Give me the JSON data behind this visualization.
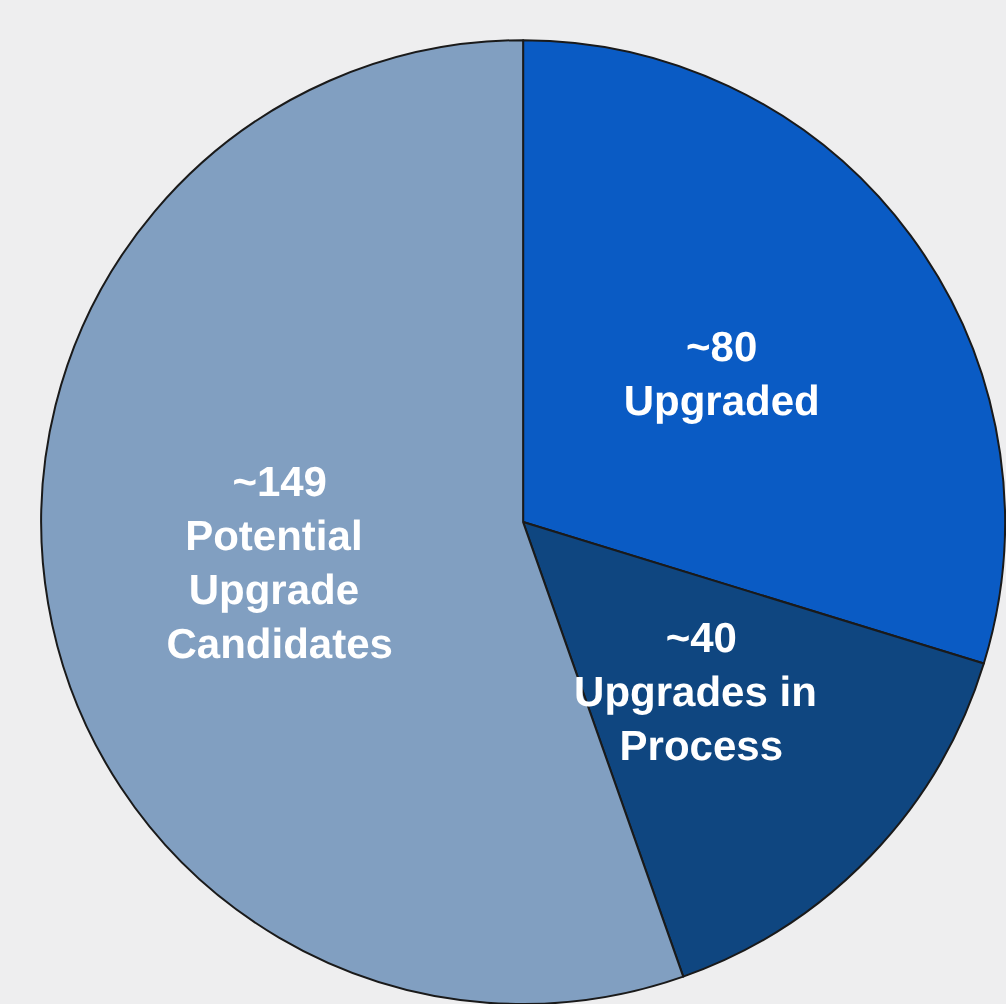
{
  "chart_data": {
    "type": "pie",
    "categories": [
      "Upgraded",
      "Upgrades in Process",
      "Potential Upgrade Candidates"
    ],
    "values": [
      80,
      40,
      149
    ],
    "value_labels": [
      "~80",
      "~40",
      "~149"
    ],
    "colors": [
      "#0a5bc4",
      "#0f4680",
      "#819fc1"
    ],
    "legend": false
  }
}
